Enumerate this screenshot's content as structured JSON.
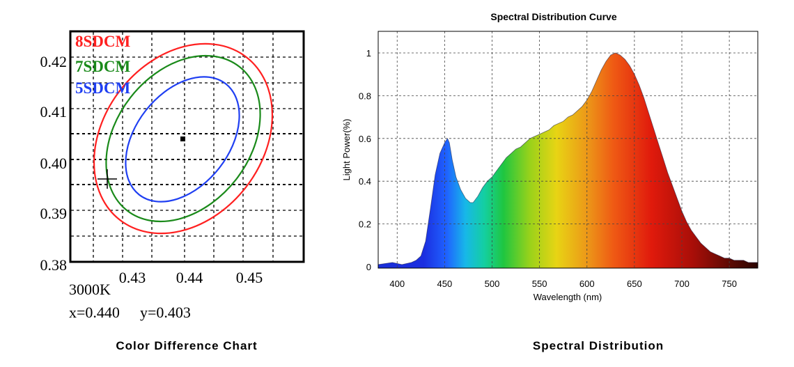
{
  "chart_data": [
    {
      "type": "scatter",
      "caption": "Color Difference Chart",
      "xlim": [
        0.42,
        0.46
      ],
      "ylim": [
        0.38,
        0.425
      ],
      "x_ticks": [
        "0.43",
        "0.44",
        "0.45"
      ],
      "y_ticks": [
        "0.42",
        "0.41",
        "0.40",
        "0.39",
        "0.38"
      ],
      "grid": true,
      "legend": [
        "8SDCM",
        "7SDCM",
        "5SDCM"
      ],
      "series": [
        {
          "name": "8SDCM",
          "color": "#ff2020"
        },
        {
          "name": "7SDCM",
          "color": "#1a8a1a"
        },
        {
          "name": "5SDCM",
          "color": "#1f3ff2"
        }
      ],
      "center_point": {
        "x": 0.44,
        "y": 0.403
      },
      "crosshair_point": {
        "x": 0.426,
        "y": 0.396
      },
      "readout": {
        "cct": "3000K",
        "x_text": "x=0.440",
        "y_text": "y=0.403"
      }
    },
    {
      "type": "area",
      "title": "Spectral Distribution Curve",
      "caption": "Spectral Distribution",
      "xlabel": "Wavelength  (nm)",
      "ylabel": "Light Power(%)",
      "xlim": [
        380,
        780
      ],
      "ylim": [
        0,
        1.05
      ],
      "x_ticks": [
        "400",
        "450",
        "500",
        "550",
        "600",
        "650",
        "700",
        "750"
      ],
      "y_ticks": [
        "0",
        "0.2",
        "0.4",
        "0.6",
        "0.8",
        "1"
      ],
      "grid": true,
      "x": [
        380,
        395,
        405,
        415,
        420,
        425,
        430,
        435,
        440,
        445,
        450,
        453,
        455,
        458,
        462,
        467,
        472,
        477,
        480,
        485,
        490,
        495,
        500,
        505,
        510,
        515,
        520,
        525,
        530,
        535,
        540,
        545,
        550,
        555,
        560,
        565,
        570,
        575,
        580,
        585,
        590,
        595,
        600,
        605,
        610,
        615,
        620,
        625,
        630,
        635,
        640,
        645,
        650,
        655,
        660,
        665,
        670,
        675,
        680,
        685,
        690,
        695,
        700,
        705,
        710,
        715,
        720,
        725,
        730,
        735,
        740,
        745,
        750,
        755,
        760,
        765,
        770,
        775,
        780
      ],
      "values": [
        0.01,
        0.02,
        0.01,
        0.02,
        0.03,
        0.05,
        0.12,
        0.27,
        0.43,
        0.53,
        0.58,
        0.6,
        0.58,
        0.5,
        0.42,
        0.36,
        0.32,
        0.3,
        0.3,
        0.33,
        0.37,
        0.4,
        0.42,
        0.45,
        0.48,
        0.51,
        0.53,
        0.55,
        0.56,
        0.58,
        0.6,
        0.61,
        0.62,
        0.63,
        0.64,
        0.66,
        0.67,
        0.68,
        0.7,
        0.71,
        0.73,
        0.75,
        0.78,
        0.82,
        0.87,
        0.92,
        0.96,
        0.99,
        1.0,
        0.99,
        0.97,
        0.94,
        0.9,
        0.85,
        0.79,
        0.72,
        0.65,
        0.58,
        0.51,
        0.44,
        0.38,
        0.32,
        0.26,
        0.21,
        0.17,
        0.14,
        0.11,
        0.09,
        0.07,
        0.06,
        0.05,
        0.04,
        0.04,
        0.03,
        0.03,
        0.03,
        0.02,
        0.02,
        0.02
      ]
    }
  ]
}
